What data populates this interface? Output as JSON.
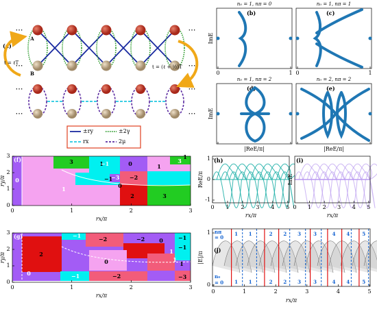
{
  "panel_a": {
    "label": "(a)",
    "site_a": "A",
    "site_b": "B",
    "dots": "⋯",
    "time_left": "t = ℓT",
    "time_right": "t = (ℓ + ½)T",
    "legend": [
      "±ry",
      "±2γ",
      "rx",
      "2μ"
    ]
  },
  "spectra": {
    "y_label": "ImE",
    "x_label": "|ReE/π|",
    "xticks": [
      0,
      1
    ],
    "panels": [
      {
        "label": "(b)",
        "title": "n₀ = 1, nπ = 0"
      },
      {
        "label": "(c)",
        "title": "n₀ = 1, nπ = 1"
      },
      {
        "label": "(d)",
        "title": "n₀ = 1, nπ = 2"
      },
      {
        "label": "(e)",
        "title": "n₀ = 2, nπ = 2"
      }
    ]
  },
  "phase": {
    "x_label": "rx/π",
    "y_label": "ry/π",
    "xticks": [
      0,
      1,
      2,
      3
    ],
    "yticks": [
      0,
      1,
      2,
      3
    ],
    "panels": [
      {
        "label": "(f)",
        "regions": [
          "0",
          "3",
          "1",
          "−1",
          "0",
          "1",
          "3",
          "1",
          "−1",
          "−3",
          "−2",
          "0",
          "1",
          "2",
          "3"
        ]
      },
      {
        "label": "(g)",
        "regions": [
          "0",
          "2",
          "0",
          "−1",
          "−2",
          "−2",
          "−1",
          "0",
          "−1",
          "1",
          "−2",
          "−3",
          "1",
          "−1",
          "1"
        ]
      }
    ]
  },
  "panel_h": {
    "label": "(h)",
    "y_label": "ReE/π",
    "x_label": "rx/π",
    "yticks": [
      -1,
      0,
      1
    ],
    "xticks": [
      0,
      1,
      2,
      3,
      4,
      5
    ]
  },
  "panel_i": {
    "label": "(i)",
    "y_label": "ImE",
    "x_label": "rx/π",
    "xticks": [
      0,
      1,
      2,
      3,
      4,
      5
    ]
  },
  "panel_j": {
    "label": "(j)",
    "y_label": "|E|/π",
    "x_label": "rx/π",
    "yticks": [
      0,
      1
    ],
    "xticks": [
      0,
      1,
      2,
      3,
      4,
      5
    ],
    "top_name": "nπ",
    "bottom_name": "n₀",
    "eq_zero": "= 0",
    "top_numbers": [
      "1",
      "1",
      "2",
      "2",
      "3",
      "3",
      "4",
      "4",
      "5"
    ],
    "bottom_numbers": [
      "1",
      "1",
      "2",
      "2",
      "3",
      "3",
      "4",
      "4",
      "5"
    ]
  }
}
